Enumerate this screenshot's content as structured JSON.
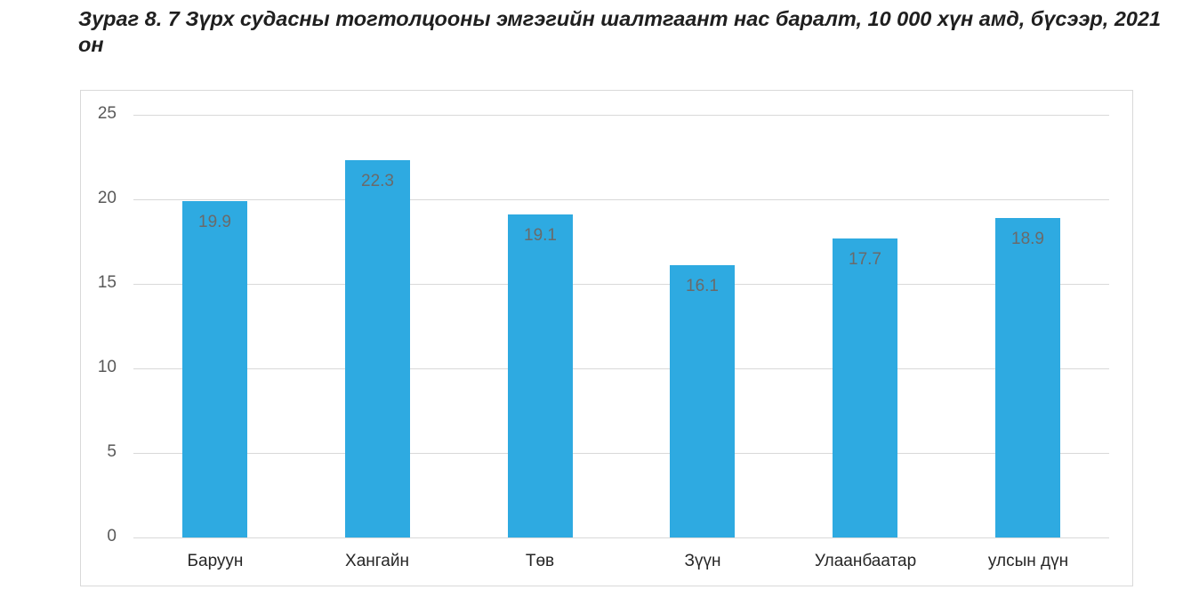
{
  "title": "Зураг 8. 7 Зүрх судасны тогтолцооны эмгэгийн шалтгаант нас баралт, 10 000 хүн амд, бүсээр, 2021 он",
  "colors": {
    "bar": "#2eaae1",
    "gridline": "#d9d9d9",
    "label": "#6a6a6a",
    "axis_text": "#595959"
  },
  "chart_data": {
    "type": "bar",
    "title": "Зураг 8. 7 Зүрх судасны тогтолцооны эмгэгийн шалтгаант нас баралт, 10 000 хүн амд, бүсээр, 2021 он",
    "xlabel": "",
    "ylabel": "",
    "categories": [
      "Баруун",
      "Хангайн",
      "Төв",
      "Зүүн",
      "Улаанбаатар",
      "улсын дүн"
    ],
    "values": [
      19.9,
      22.3,
      19.1,
      16.1,
      17.7,
      18.9
    ],
    "data_labels": [
      "19.9",
      "22.3",
      "19.1",
      "16.1",
      "17.7",
      "18.9"
    ],
    "ylim": [
      0,
      25
    ],
    "yticks": [
      0,
      5,
      10,
      15,
      20,
      25
    ],
    "grid": true,
    "legend": null
  }
}
